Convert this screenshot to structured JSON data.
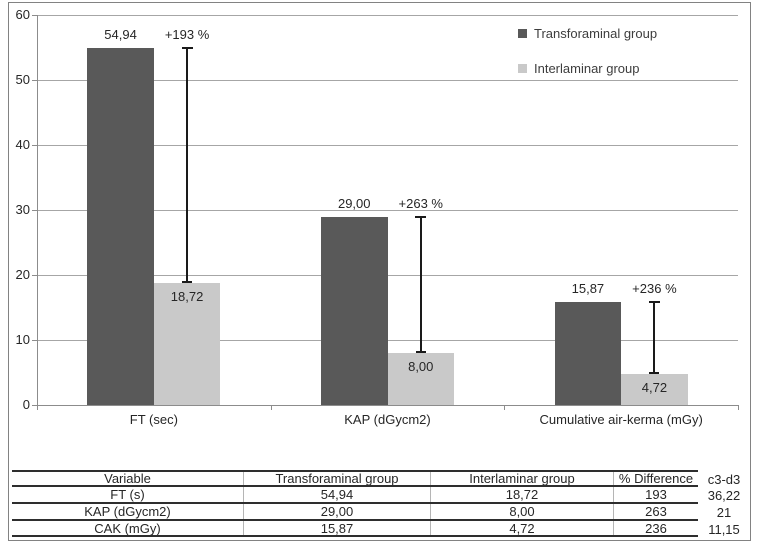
{
  "chart_data": {
    "type": "bar",
    "categories": [
      "FT (sec)",
      "KAP (dGycm2)",
      "Cumulative air-kerma (mGy)"
    ],
    "series": [
      {
        "name": "Transforaminal group",
        "color": "#595959",
        "values": [
          54.94,
          29.0,
          15.87
        ],
        "labels": [
          "54,94",
          "29,00",
          "15,87"
        ]
      },
      {
        "name": "Interlaminar group",
        "color": "#c9c9c9",
        "values": [
          18.72,
          8.0,
          4.72
        ],
        "labels": [
          "18,72",
          "8,00",
          "4,72"
        ]
      }
    ],
    "difference_labels": [
      "+193 %",
      "+263 %",
      "+236 %"
    ],
    "title": "",
    "xlabel": "",
    "ylabel": "",
    "ylim": [
      0,
      60
    ],
    "ytick_step": 10,
    "ytick_labels": [
      "0",
      "10",
      "20",
      "30",
      "40",
      "50",
      "60"
    ],
    "grid": true,
    "legend_position": "top-right",
    "gridline_color": "#a6a6a6",
    "error_bar_color": "#1a1a1a"
  },
  "table": {
    "headers": [
      "Variable",
      "Transforaminal group",
      "Interlaminar group",
      "% Difference"
    ],
    "rows": [
      [
        "FT (s)",
        "54,94",
        "18,72",
        "193"
      ],
      [
        "KAP (dGycm2)",
        "29,00",
        "8,00",
        "263"
      ],
      [
        "CAK (mGy)",
        "15,87",
        "4,72",
        "236"
      ]
    ],
    "extra_column": {
      "header": "c3-d3",
      "values": [
        "36,22",
        "21",
        "11,15"
      ]
    }
  }
}
